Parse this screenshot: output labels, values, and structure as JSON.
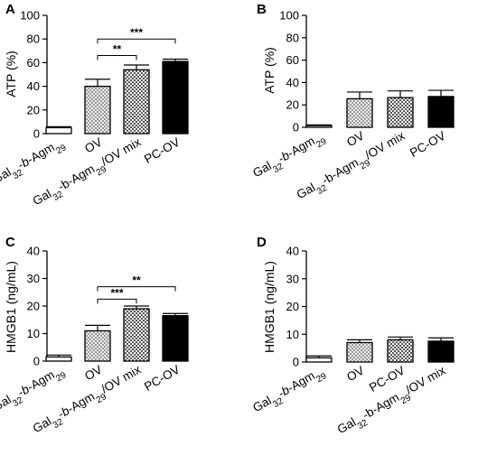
{
  "colors": {
    "axis": "#000000",
    "checker_dark": "#555555",
    "hatch": "#777777",
    "solid": "#000000",
    "empty": "#ffffff"
  },
  "chart_data": [
    {
      "panel": "A",
      "type": "bar",
      "ylabel": "ATP (%)",
      "ylim": [
        0,
        100
      ],
      "yticks": [
        0,
        20,
        40,
        60,
        80,
        100
      ],
      "categories": [
        {
          "label": "Gal32-b-Agm29",
          "parts": [
            [
              "Gal",
              "n"
            ],
            [
              "32",
              "sub"
            ],
            [
              "-",
              "n"
            ],
            [
              "b",
              "i"
            ],
            [
              "-Agm",
              "n"
            ],
            [
              "29",
              "sub"
            ]
          ],
          "value": 5,
          "error": 0.8,
          "pattern": "empty"
        },
        {
          "label": "OV",
          "parts": [
            [
              "OV",
              "n"
            ]
          ],
          "value": 40,
          "error": 6,
          "pattern": "hatch"
        },
        {
          "label": "Gal32-b-Agm29/OV mix",
          "parts": [
            [
              "Gal",
              "n"
            ],
            [
              "32",
              "sub"
            ],
            [
              "-b-Agm",
              "n"
            ],
            [
              "29",
              "sub"
            ],
            [
              "/OV mix",
              "n"
            ]
          ],
          "value": 54,
          "error": 4,
          "pattern": "checker"
        },
        {
          "label": "PC-OV",
          "parts": [
            [
              "PC-OV",
              "n"
            ]
          ],
          "value": 61,
          "error": 2,
          "pattern": "solid"
        }
      ],
      "significance": [
        {
          "from": 1,
          "to": 2,
          "label": "**",
          "y": 66
        },
        {
          "from": 1,
          "to": 3,
          "label": "***",
          "y": 80
        }
      ]
    },
    {
      "panel": "B",
      "type": "bar",
      "ylabel": "ATP (%)",
      "ylim": [
        0,
        100
      ],
      "yticks": [
        0,
        20,
        40,
        60,
        80,
        100
      ],
      "categories": [
        {
          "label": "Gal32-b-Agm29",
          "parts": [
            [
              "Gal",
              "n"
            ],
            [
              "32",
              "sub"
            ],
            [
              "-",
              "n"
            ],
            [
              "b",
              "i"
            ],
            [
              "-Agm",
              "n"
            ],
            [
              "29",
              "sub"
            ]
          ],
          "value": 1.5,
          "error": 0.6,
          "pattern": "empty"
        },
        {
          "label": "OV",
          "parts": [
            [
              "OV",
              "n"
            ]
          ],
          "value": 25.5,
          "error": 6,
          "pattern": "hatch"
        },
        {
          "label": "Gal32-b-Agm29/OV mix",
          "parts": [
            [
              "Gal",
              "n"
            ],
            [
              "32",
              "sub"
            ],
            [
              "-b-Agm",
              "n"
            ],
            [
              "29",
              "sub"
            ],
            [
              "/OV mix",
              "n"
            ]
          ],
          "value": 26.5,
          "error": 6,
          "pattern": "checker"
        },
        {
          "label": "PC-OV",
          "parts": [
            [
              "PC-OV",
              "n"
            ]
          ],
          "value": 27.5,
          "error": 5.5,
          "pattern": "solid"
        }
      ],
      "significance": []
    },
    {
      "panel": "C",
      "type": "bar",
      "ylabel": "HMGB1 (ng/mL)",
      "ylim": [
        0,
        40
      ],
      "yticks": [
        0,
        10,
        20,
        30,
        40
      ],
      "categories": [
        {
          "label": "Gal32-b-Agm29",
          "parts": [
            [
              "Gal",
              "n"
            ],
            [
              "32",
              "sub"
            ],
            [
              "-",
              "n"
            ],
            [
              "b",
              "i"
            ],
            [
              "-Agm",
              "n"
            ],
            [
              "29",
              "sub"
            ]
          ],
          "value": 1.5,
          "error": 0.7,
          "pattern": "empty"
        },
        {
          "label": "OV",
          "parts": [
            [
              "OV",
              "n"
            ]
          ],
          "value": 11,
          "error": 2,
          "pattern": "hatch"
        },
        {
          "label": "Gal32-b-Agm29/OV mix",
          "parts": [
            [
              "Gal",
              "n"
            ],
            [
              "32",
              "sub"
            ],
            [
              "-",
              "n"
            ],
            [
              "b",
              "i"
            ],
            [
              "-Agm",
              "n"
            ],
            [
              "29",
              "sub"
            ],
            [
              "/OV mix",
              "n"
            ]
          ],
          "value": 19,
          "error": 1,
          "pattern": "checker"
        },
        {
          "label": "PC-OV",
          "parts": [
            [
              "PC-OV",
              "n"
            ]
          ],
          "value": 16.5,
          "error": 0.8,
          "pattern": "solid"
        }
      ],
      "significance": [
        {
          "from": 1,
          "to": 2,
          "label": "***",
          "y": 22.5
        },
        {
          "from": 1,
          "to": 3,
          "label": "**",
          "y": 27
        }
      ]
    },
    {
      "panel": "D",
      "type": "bar",
      "ylabel": "HMGB1 (ng/mL)",
      "ylim": [
        0,
        40
      ],
      "yticks": [
        0,
        10,
        20,
        30,
        40
      ],
      "categories": [
        {
          "label": "Gal32-b-Agm29",
          "parts": [
            [
              "Gal",
              "n"
            ],
            [
              "32",
              "sub"
            ],
            [
              "-",
              "n"
            ],
            [
              "b",
              "i"
            ],
            [
              "-Agm",
              "n"
            ],
            [
              "29",
              "sub"
            ]
          ],
          "value": 1.5,
          "error": 0.7,
          "pattern": "empty"
        },
        {
          "label": "OV",
          "parts": [
            [
              "OV",
              "n"
            ]
          ],
          "value": 7,
          "error": 1,
          "pattern": "hatch"
        },
        {
          "label": "PC-OV",
          "parts": [
            [
              "PC-OV",
              "n"
            ]
          ],
          "value": 8,
          "error": 1,
          "pattern": "checker"
        },
        {
          "label": "Gal32-b-Agm29/OV mix",
          "parts": [
            [
              "Gal",
              "n"
            ],
            [
              "32",
              "sub"
            ],
            [
              "-b-Agm",
              "n"
            ],
            [
              "29",
              "sub"
            ],
            [
              "/OV mix",
              "n"
            ]
          ],
          "value": 7.5,
          "error": 1.2,
          "pattern": "solid"
        }
      ],
      "significance": []
    }
  ]
}
